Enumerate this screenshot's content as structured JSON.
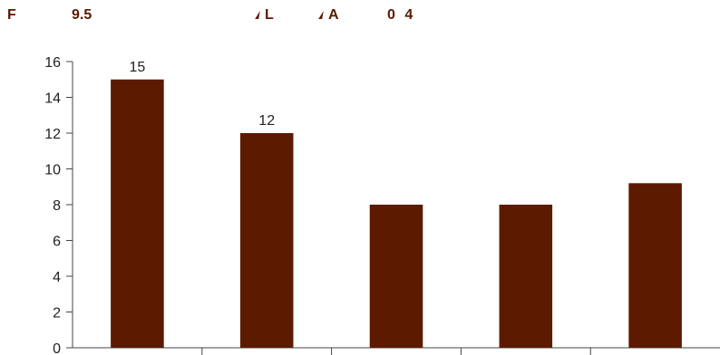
{
  "header": {
    "f_label": "F",
    "value_label": "9.5",
    "l_label": "L",
    "a_label": "A",
    "right_label": "0 4",
    "accent_color": "#5a1a00",
    "marker_icon": "triangle-marker-icon"
  },
  "chart_data": {
    "type": "bar",
    "categories": [
      "",
      "",
      "",
      "",
      ""
    ],
    "values": [
      15,
      12,
      8,
      8,
      9.2
    ],
    "data_labels": [
      "15",
      "12",
      "",
      "",
      ""
    ],
    "title": "",
    "xlabel": "",
    "ylabel": "",
    "ylim": [
      0,
      16
    ],
    "yticks": [
      0,
      2,
      4,
      6,
      8,
      10,
      12,
      14,
      16
    ],
    "grid": false,
    "bar_color": "#5c1a00"
  }
}
